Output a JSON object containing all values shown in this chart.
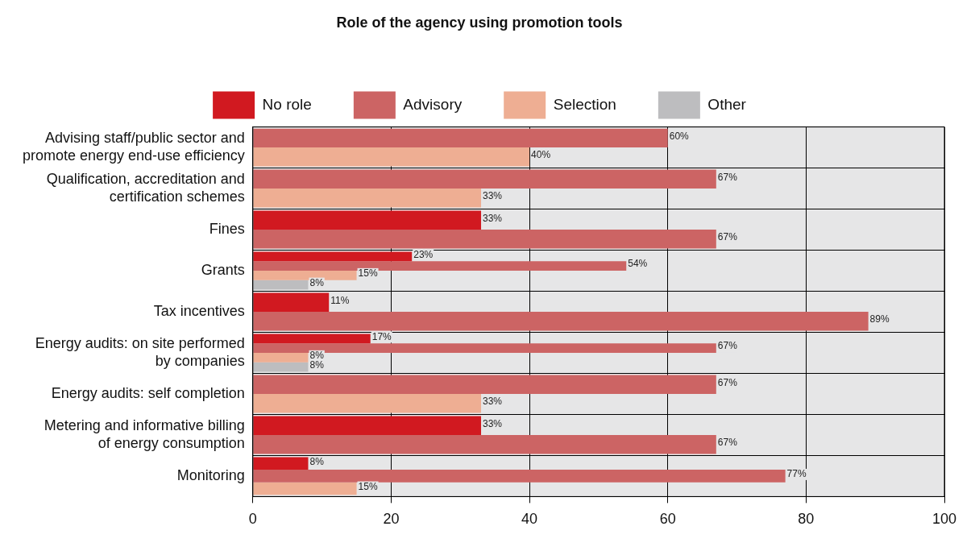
{
  "chart_data": {
    "type": "bar",
    "orientation": "horizontal",
    "title": "Role of the agency using promotion tools",
    "categories": [
      "Advising staff/public sector and promote energy end-use efficiency",
      "Qualification, accreditation and certification schemes",
      "Fines",
      "Grants",
      "Tax incentives",
      "Energy audits: on site performed by companies",
      "Energy audits: self completion",
      "Metering and informative billing of energy consumption",
      "Monitoring"
    ],
    "series": [
      {
        "name": "No role",
        "color": "#d11920",
        "values": [
          null,
          null,
          33,
          23,
          11,
          17,
          null,
          33,
          8
        ],
        "value_labels": [
          null,
          null,
          "33%",
          "23%",
          "11%",
          "17%",
          null,
          "33%",
          "8%"
        ]
      },
      {
        "name": "Advisory",
        "color": "#cc6464",
        "values": [
          60,
          67,
          67,
          54,
          89,
          67,
          67,
          67,
          77
        ],
        "value_labels": [
          "60%",
          "67%",
          "67%",
          "54%",
          "89%",
          "67%",
          "67%",
          "67%",
          "77%"
        ]
      },
      {
        "name": "Selection",
        "color": "#eeae93",
        "values": [
          40,
          33,
          null,
          15,
          null,
          8,
          33,
          null,
          15
        ],
        "value_labels": [
          "40%",
          "33%",
          null,
          "15%",
          null,
          "8%",
          "33%",
          null,
          "15%"
        ]
      },
      {
        "name": "Other",
        "color": "#bdbdbf",
        "values": [
          null,
          null,
          null,
          8,
          null,
          8,
          null,
          null,
          null
        ],
        "value_labels": [
          null,
          null,
          null,
          "8%",
          null,
          "8%",
          null,
          null,
          null
        ]
      }
    ],
    "xlim": [
      0,
      100
    ],
    "xticks": [
      0,
      20,
      40,
      60,
      80,
      100
    ],
    "grid": true,
    "legend": "top"
  }
}
